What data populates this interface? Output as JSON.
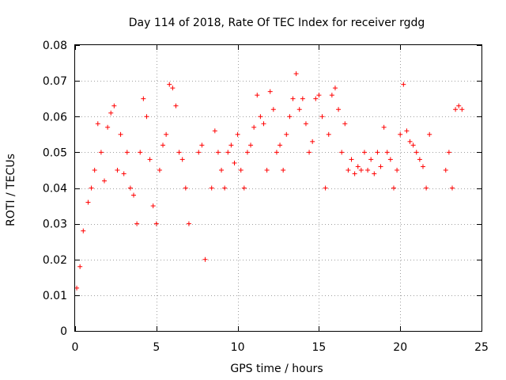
{
  "chart_data": {
    "type": "scatter",
    "title": "Day 114 of 2018, Rate Of TEC Index for receiver rgdg",
    "xlabel": "GPS time / hours",
    "ylabel": "ROTI / TECUs",
    "xlim": [
      0,
      25
    ],
    "ylim": [
      0,
      0.08
    ],
    "xticks": [
      0,
      5,
      10,
      15,
      20,
      25
    ],
    "xtick_labels": [
      "0",
      "5",
      "10",
      "15",
      "20",
      "25"
    ],
    "yticks": [
      0,
      0.01,
      0.02,
      0.03,
      0.04,
      0.05,
      0.06,
      0.07,
      0.08
    ],
    "ytick_labels": [
      "0",
      "0.01",
      "0.02",
      "0.03",
      "0.04",
      "0.05",
      "0.06",
      "0.07",
      "0.08"
    ],
    "grid": true,
    "marker": "+",
    "color": "#ff0000",
    "series": [
      {
        "name": "ROTI",
        "x": [
          0.1,
          0.3,
          0.5,
          0.8,
          1.0,
          1.2,
          1.4,
          1.6,
          1.8,
          2.0,
          2.2,
          2.4,
          2.6,
          2.8,
          3.0,
          3.2,
          3.4,
          3.6,
          3.8,
          4.0,
          4.2,
          4.4,
          4.6,
          4.8,
          5.0,
          5.2,
          5.4,
          5.6,
          5.8,
          6.0,
          6.2,
          6.4,
          6.6,
          6.8,
          7.0,
          7.6,
          7.8,
          8.0,
          8.4,
          8.6,
          8.8,
          9.0,
          9.2,
          9.4,
          9.6,
          9.8,
          10.0,
          10.2,
          10.4,
          10.6,
          10.8,
          11.0,
          11.2,
          11.4,
          11.6,
          11.8,
          12.0,
          12.2,
          12.4,
          12.6,
          12.8,
          13.0,
          13.2,
          13.4,
          13.6,
          13.8,
          14.0,
          14.2,
          14.4,
          14.6,
          14.8,
          15.0,
          15.2,
          15.4,
          15.6,
          15.8,
          16.0,
          16.2,
          16.4,
          16.6,
          16.8,
          17.0,
          17.2,
          17.4,
          17.6,
          17.8,
          18.0,
          18.2,
          18.4,
          18.6,
          18.8,
          19.0,
          19.2,
          19.4,
          19.6,
          19.8,
          20.0,
          20.2,
          20.4,
          20.6,
          20.8,
          21.0,
          21.2,
          21.4,
          21.6,
          21.8,
          22.8,
          23.0,
          23.2,
          23.4,
          23.6,
          23.8
        ],
        "y": [
          0.012,
          0.018,
          0.028,
          0.036,
          0.04,
          0.045,
          0.058,
          0.05,
          0.042,
          0.057,
          0.061,
          0.063,
          0.045,
          0.055,
          0.044,
          0.05,
          0.04,
          0.038,
          0.03,
          0.05,
          0.065,
          0.06,
          0.048,
          0.035,
          0.03,
          0.045,
          0.052,
          0.055,
          0.069,
          0.068,
          0.063,
          0.05,
          0.048,
          0.04,
          0.03,
          0.05,
          0.052,
          0.02,
          0.04,
          0.056,
          0.05,
          0.045,
          0.04,
          0.05,
          0.052,
          0.047,
          0.055,
          0.045,
          0.04,
          0.05,
          0.052,
          0.057,
          0.066,
          0.06,
          0.058,
          0.045,
          0.067,
          0.062,
          0.05,
          0.052,
          0.045,
          0.055,
          0.06,
          0.065,
          0.072,
          0.062,
          0.065,
          0.058,
          0.05,
          0.053,
          0.065,
          0.066,
          0.06,
          0.04,
          0.055,
          0.066,
          0.068,
          0.062,
          0.05,
          0.058,
          0.045,
          0.048,
          0.044,
          0.046,
          0.045,
          0.05,
          0.045,
          0.048,
          0.044,
          0.05,
          0.046,
          0.057,
          0.05,
          0.048,
          0.04,
          0.045,
          0.055,
          0.069,
          0.056,
          0.053,
          0.052,
          0.05,
          0.048,
          0.046,
          0.04,
          0.055,
          0.045,
          0.05,
          0.04,
          0.062,
          0.063,
          0.062
        ]
      }
    ]
  }
}
